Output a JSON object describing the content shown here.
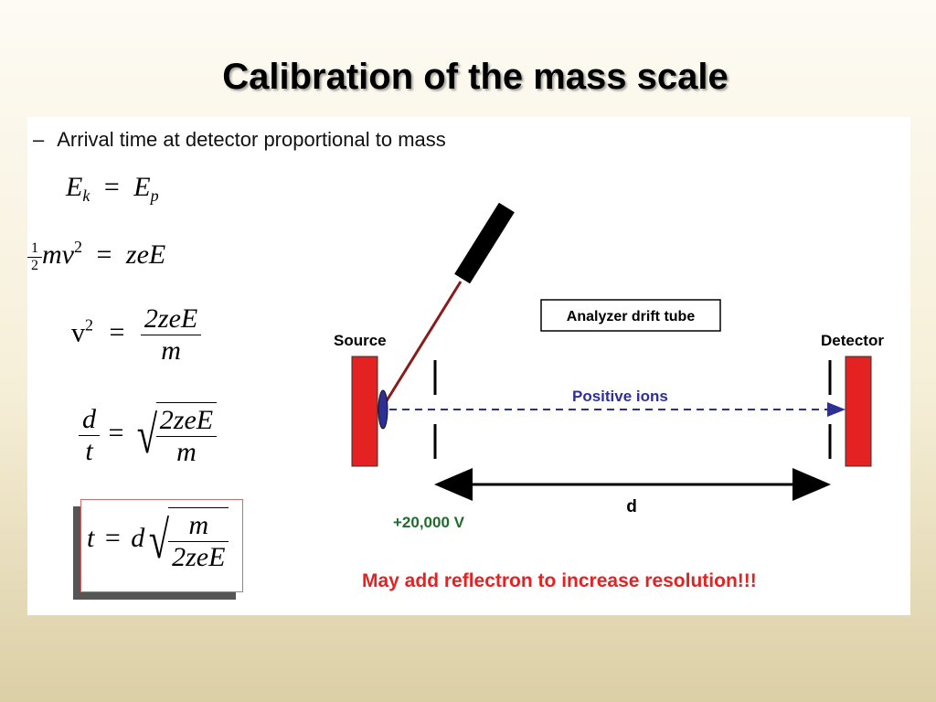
{
  "slide": {
    "title": "Calibration of the mass scale",
    "bullet": "Arrival time at detector proportional to mass",
    "bullet_marker": "–"
  },
  "equations": {
    "eq1": {
      "lhs": "E",
      "lhs_sub": "k",
      "op": "=",
      "rhs": "E",
      "rhs_sub": "p"
    },
    "eq2": {
      "half_num": "1",
      "half_den": "2",
      "mv": "mv",
      "sq": "2",
      "op": "=",
      "rhs": "zeE"
    },
    "eq3": {
      "lhs": "v",
      "sq": "2",
      "op": "=",
      "num": "2zeE",
      "den": "m"
    },
    "eq4": {
      "lnum": "d",
      "lden": "t",
      "op": "=",
      "num": "2zeE",
      "den": "m"
    },
    "eq5": {
      "lhs": "t",
      "op": "=",
      "d": "d",
      "num": "m",
      "den": "2zeE"
    }
  },
  "diagram": {
    "source_label": "Source",
    "detector_label": "Detector",
    "tube_label": "Analyzer drift tube",
    "ions_label": "Positive ions",
    "voltage_label": "+20,000 V",
    "distance_label": "d",
    "note": "May add reflectron to increase resolution!!!",
    "colors": {
      "plate": "#e52222",
      "laser_beam": "#8b1a1a",
      "ions": "#2e2f95",
      "voltage": "#1e6b2a",
      "note": "#e52222"
    }
  }
}
